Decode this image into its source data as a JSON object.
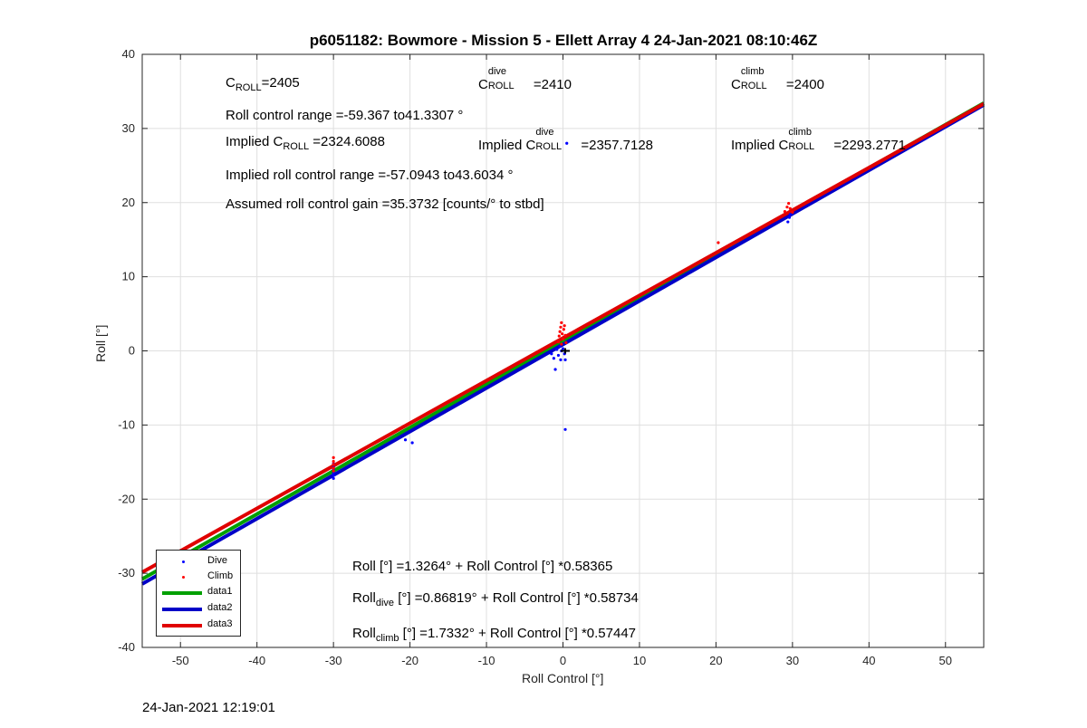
{
  "chart_data": {
    "type": "scatter",
    "title": "p6051182: Bowmore - Mission 5 - Ellett Array 4 24-Jan-2021 08:10:46Z",
    "xlabel": "Roll Control [°]",
    "ylabel": "Roll [°]",
    "xlim": [
      -55,
      55
    ],
    "ylim": [
      -40,
      40
    ],
    "xticks": [
      -50,
      -40,
      -30,
      -20,
      -10,
      0,
      10,
      20,
      30,
      40,
      50
    ],
    "yticks": [
      -40,
      -30,
      -20,
      -10,
      0,
      10,
      20,
      30,
      40
    ],
    "grid": true,
    "legend_position": "bottom-left",
    "series": [
      {
        "name": "Dive",
        "kind": "points",
        "color": "#0000ff",
        "points": [
          [
            -30,
            -17.2
          ],
          [
            -30,
            -16.8
          ],
          [
            -30,
            -16.4
          ],
          [
            -30,
            -16.0
          ],
          [
            -30,
            -15.7
          ],
          [
            -30,
            -15.2
          ],
          [
            -20.6,
            -12.0
          ],
          [
            -19.7,
            -12.4
          ],
          [
            -1.5,
            -0.4
          ],
          [
            -1.2,
            -1.0
          ],
          [
            -1.0,
            -2.5
          ],
          [
            -0.8,
            0.2
          ],
          [
            -0.6,
            -0.6
          ],
          [
            -0.4,
            0.6
          ],
          [
            -0.3,
            -1.2
          ],
          [
            -0.2,
            0.0
          ],
          [
            0,
            0.3
          ],
          [
            0.2,
            -0.4
          ],
          [
            0.3,
            -1.2
          ],
          [
            0.5,
            28.0
          ],
          [
            0.3,
            -10.6
          ],
          [
            29.4,
            17.4
          ],
          [
            29.6,
            18.0
          ],
          [
            29.7,
            18.4
          ]
        ]
      },
      {
        "name": "Climb",
        "kind": "points",
        "color": "#ff0000",
        "points": [
          [
            -30,
            -16.2
          ],
          [
            -30,
            -15.8
          ],
          [
            -30,
            -15.3
          ],
          [
            -30,
            -14.9
          ],
          [
            -30,
            -14.4
          ],
          [
            -0.6,
            1.2
          ],
          [
            -0.5,
            2.0
          ],
          [
            -0.4,
            2.6
          ],
          [
            -0.3,
            3.2
          ],
          [
            -0.2,
            3.8
          ],
          [
            -0.1,
            2.3
          ],
          [
            0,
            1.6
          ],
          [
            0.1,
            2.9
          ],
          [
            0.2,
            3.4
          ],
          [
            0.3,
            2.1
          ],
          [
            -0.2,
            0.9
          ],
          [
            0.4,
            1.1
          ],
          [
            20.3,
            14.6
          ],
          [
            29.0,
            18.8
          ],
          [
            29.3,
            19.4
          ],
          [
            29.5,
            19.9
          ],
          [
            29.7,
            19.2
          ],
          [
            30.0,
            18.7
          ]
        ]
      },
      {
        "name": "data1",
        "kind": "line",
        "color": "#00a000",
        "intercept": 1.3264,
        "slope": 0.58365
      },
      {
        "name": "data2",
        "kind": "line",
        "color": "#0000c8",
        "intercept": 0.86819,
        "slope": 0.58734
      },
      {
        "name": "data3",
        "kind": "line",
        "color": "#e00000",
        "intercept": 1.7332,
        "slope": 0.57447
      }
    ],
    "center_marker": {
      "x": 0.3,
      "y": 0.0,
      "color": "#000000"
    }
  },
  "annotations": {
    "c_roll": {
      "base": "C",
      "sub": "ROLL",
      "rest": "=2405"
    },
    "c_roll_dive": {
      "base": "C",
      "sup": "dive",
      "sub": "ROLL",
      "rest": "=2410"
    },
    "c_roll_climb": {
      "base": "C",
      "sup": "climb",
      "sub": "ROLL",
      "rest": "=2400"
    },
    "range": "Roll control range =-59.367 to41.3307 °",
    "implied": {
      "pre": "Implied C",
      "sub": "ROLL",
      "rest": " =2324.6088"
    },
    "implied_dive": {
      "pre": "Implied C",
      "sup": "dive",
      "sub": "ROLL",
      "rest": "=2357.7128"
    },
    "implied_climb": {
      "pre": "Implied C",
      "sup": "climb",
      "sub": "ROLL",
      "rest": "=2293.2771"
    },
    "implied_range": "Implied roll control range =-57.0943 to43.6034 °",
    "gain": "Assumed roll control gain =35.3732 [counts/° to stbd]",
    "fit_all": "Roll [°] =1.3264° + Roll Control [°] *0.58365",
    "fit_dive": {
      "pre": "Roll",
      "sub": "dive",
      "rest": " [°] =0.86819° + Roll Control [°] *0.58734"
    },
    "fit_climb": {
      "pre": "Roll",
      "sub": "climb",
      "rest": " [°] =1.7332° + Roll Control [°] *0.57447"
    }
  },
  "timestamp": "24-Jan-2021 12:19:01"
}
